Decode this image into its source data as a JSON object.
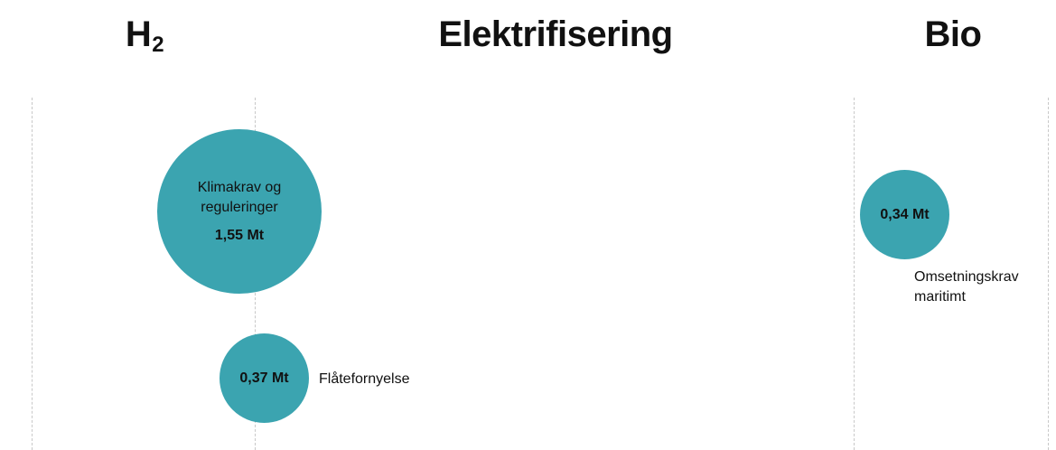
{
  "columns": {
    "h2": {
      "title_main": "H",
      "title_sub": "2"
    },
    "electrification": {
      "title": "Elektrifisering"
    },
    "bio": {
      "title": "Bio"
    }
  },
  "bubbles": [
    {
      "label_line1": "Klimakrav og",
      "label_line2": "reguleringer",
      "value": "1,55 Mt",
      "value_mt": 1.55,
      "column": "H2"
    },
    {
      "label": "Flåtefornyelse",
      "value": "0,37 Mt",
      "value_mt": 0.37,
      "column": "H2"
    },
    {
      "label_line1": "Omsetningskrav",
      "label_line2": "maritimt",
      "value": "0,34 Mt",
      "value_mt": 0.34,
      "column": "Bio"
    }
  ],
  "colors": {
    "bubble": "#3ba4b0",
    "divider": "#c8c8c8",
    "text": "#111111"
  }
}
